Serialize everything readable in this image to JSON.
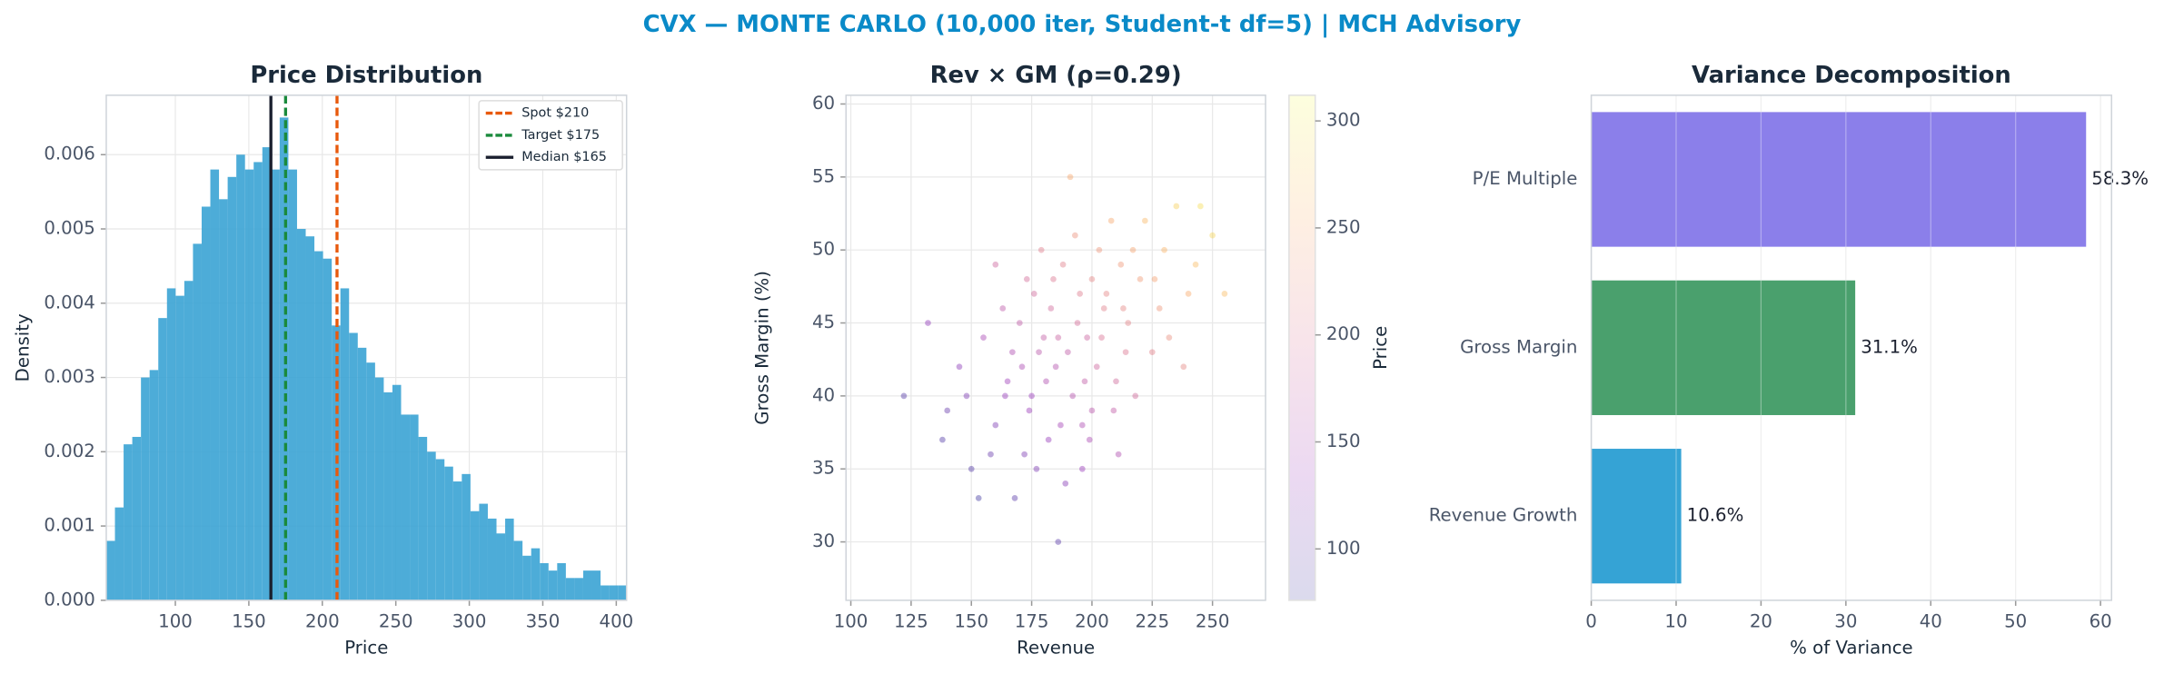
{
  "title": "CVX — MONTE CARLO (10,000 iter, Student-t df=5) | MCH Advisory",
  "chart_data": [
    {
      "type": "histogram",
      "title": "Price Distribution",
      "xlabel": "Price",
      "ylabel": "Density",
      "color": "#3aa3d4",
      "bins": [
        53,
        58.9,
        64.8,
        70.7,
        76.6,
        82.5,
        88.4,
        94.3,
        100.2,
        106.1,
        112,
        117.9,
        123.8,
        129.7,
        135.6,
        141.5,
        147.4,
        153.3,
        159.2,
        165.1,
        171,
        176.9,
        182.8,
        188.7,
        194.6,
        200.5,
        206.4,
        212.3,
        218.2,
        224.1,
        230,
        235.9,
        241.8,
        247.7,
        253.6,
        259.5,
        265.4,
        271.3,
        277.2,
        283.1,
        289,
        294.9,
        300.8,
        306.7,
        312.6,
        318.5,
        324.4,
        330.3,
        336.2,
        342.1,
        348,
        353.9,
        359.8,
        365.7,
        371.6,
        377.5,
        383.4,
        389.3,
        395.2,
        401.1,
        407
      ],
      "values": [
        0.0008,
        0.00125,
        0.0021,
        0.0022,
        0.003,
        0.0031,
        0.0038,
        0.0042,
        0.0041,
        0.0043,
        0.0048,
        0.0053,
        0.0058,
        0.0054,
        0.0057,
        0.006,
        0.0058,
        0.0059,
        0.0061,
        0.0058,
        0.0065,
        0.0058,
        0.005,
        0.0049,
        0.0047,
        0.0046,
        0.0037,
        0.0042,
        0.0036,
        0.0034,
        0.0032,
        0.003,
        0.0028,
        0.0029,
        0.0025,
        0.0025,
        0.0022,
        0.002,
        0.0019,
        0.0018,
        0.0016,
        0.0017,
        0.0012,
        0.0013,
        0.0011,
        0.0009,
        0.0011,
        0.0008,
        0.0006,
        0.0007,
        0.0005,
        0.0004,
        0.0005,
        0.0003,
        0.0003,
        0.0004,
        0.0004,
        0.0002,
        0.0002,
        0.0002
      ],
      "xlim": [
        53,
        407
      ],
      "xticks": [
        100,
        150,
        200,
        250,
        300,
        350,
        400
      ],
      "ylim": [
        0,
        0.0068
      ],
      "yticks": [
        {
          "value": 0,
          "label": "0.000"
        },
        {
          "value": 0.001,
          "label": "0.001"
        },
        {
          "value": 0.002,
          "label": "0.002"
        },
        {
          "value": 0.003,
          "label": "0.003"
        },
        {
          "value": 0.004,
          "label": "0.004"
        },
        {
          "value": 0.005,
          "label": "0.005"
        },
        {
          "value": 0.006,
          "label": "0.006"
        }
      ],
      "grid": true,
      "legend": "upper right",
      "vlines": [
        {
          "label": "Spot $210",
          "value": 210,
          "color": "#e8590c",
          "style": "dashed"
        },
        {
          "label": "Target $175",
          "value": 175,
          "color": "#1a8a3c",
          "style": "dashed"
        },
        {
          "label": "Median $165",
          "value": 165,
          "color": "#1a1f2e",
          "style": "solid"
        }
      ]
    },
    {
      "type": "scatter",
      "title": "Rev × GM (ρ=0.29)",
      "xlabel": "Revenue",
      "ylabel": "Gross Margin (%)",
      "colorbar_label": "Price",
      "x": [
        190,
        175,
        205,
        160,
        220,
        185,
        198,
        170,
        210,
        182,
        230,
        150,
        195,
        178,
        200,
        215,
        165,
        188,
        240,
        172,
        192,
        208,
        145,
        225,
        183,
        168,
        202,
        235,
        155,
        187,
        212,
        176,
        196,
        250,
        140,
        204,
        181,
        218,
        163,
        193,
        228,
        174,
        199,
        158,
        186,
        243,
        132,
        211,
        179,
        206,
        167,
        222,
        189,
        148,
        197,
        232,
        184,
        171,
        214,
        160,
        194,
        238,
        177,
        203,
        153,
        226,
        180,
        209,
        164,
        191,
        255,
        138,
        217,
        186,
        200,
        122,
        245,
        173,
        196,
        213
      ],
      "y": [
        43,
        40,
        46,
        38,
        48,
        42,
        44,
        45,
        41,
        37,
        50,
        35,
        47,
        43,
        39,
        45,
        41,
        49,
        47,
        36,
        40,
        52,
        42,
        43,
        46,
        33,
        42,
        53,
        44,
        38,
        49,
        47,
        35,
        51,
        39,
        44,
        41,
        40,
        46,
        51,
        46,
        39,
        37,
        36,
        44,
        49,
        45,
        36,
        50,
        47,
        43,
        52,
        34,
        40,
        41,
        44,
        48,
        42,
        43,
        49,
        45,
        42,
        35,
        50,
        33,
        48,
        44,
        39,
        40,
        55,
        47,
        37,
        50,
        30,
        48,
        40,
        53,
        48,
        38,
        46
      ],
      "c": [
        170,
        135,
        209,
        116,
        236,
        159,
        180,
        170,
        186,
        132,
        258,
        88,
        205,
        164,
        162,
        213,
        139,
        210,
        250,
        116,
        160,
        248,
        125,
        211,
        187,
        94,
        182,
        281,
        147,
        143,
        234,
        186,
        134,
        284,
        102,
        196,
        155,
        186,
        167,
        227,
        232,
        136,
        149,
        102,
        178,
        265,
        130,
        155,
        207,
        216,
        153,
        262,
        121,
        116,
        171,
        224,
        200,
        151,
        200,
        182,
        192,
        218,
        115,
        231,
        79,
        242,
        172,
        171,
        132,
        249,
        265,
        88,
        245,
        94,
        216,
        90,
        291,
        189,
        152,
        217
      ],
      "colormap": [
        "#0d0887",
        "#7e03a8",
        "#cc4778",
        "#f89540",
        "#f0f921"
      ],
      "xlim": [
        98,
        272
      ],
      "xticks": [
        100,
        125,
        150,
        175,
        200,
        225,
        250
      ],
      "ylim": [
        26,
        60.6
      ],
      "yticks": [
        30,
        35,
        40,
        45,
        50,
        55,
        60
      ],
      "clim": [
        76,
        312
      ],
      "cticks": [
        100,
        150,
        200,
        250,
        300
      ],
      "grid": true
    },
    {
      "type": "bar",
      "orientation": "horizontal",
      "title": "Variance Decomposition",
      "xlabel": "% of Variance",
      "categories": [
        "P/E Multiple",
        "Gross Margin",
        "Revenue Growth"
      ],
      "values": [
        58.3,
        31.1,
        10.6
      ],
      "value_labels": [
        "58.3%",
        "31.1%",
        "10.6%"
      ],
      "colors": [
        "#8b7fea",
        "#4aa06d",
        "#35a3d5"
      ],
      "xlim": [
        0,
        61.3
      ],
      "xticks": [
        0,
        10,
        20,
        30,
        40,
        50,
        60
      ],
      "grid": true
    }
  ]
}
